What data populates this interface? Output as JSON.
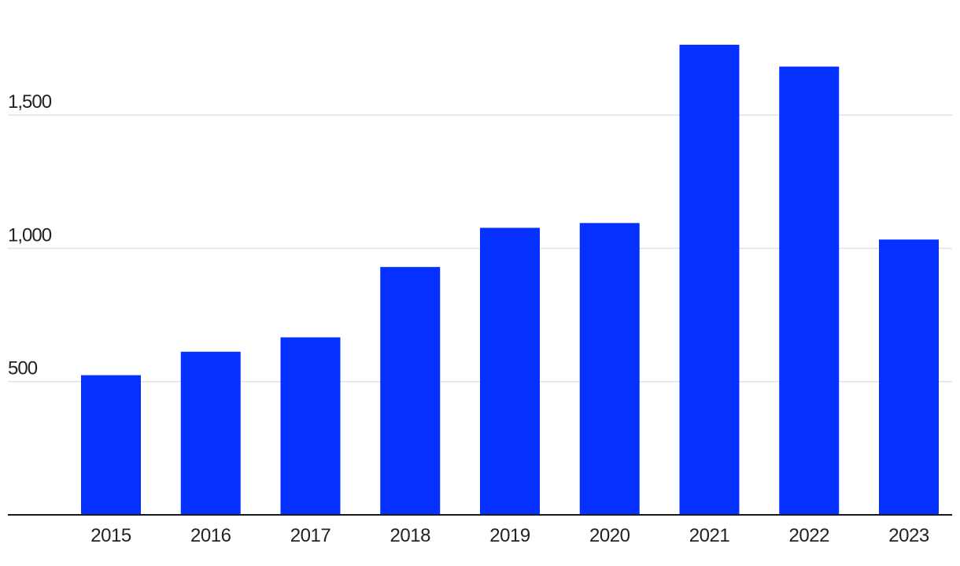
{
  "chart_data": {
    "type": "bar",
    "title": "",
    "xlabel": "",
    "ylabel": "",
    "categories": [
      "2015",
      "2016",
      "2017",
      "2018",
      "2019",
      "2020",
      "2021",
      "2022",
      "2023"
    ],
    "values": [
      524,
      612,
      666,
      930,
      1077,
      1095,
      1764,
      1682,
      1033
    ],
    "ylim": [
      0,
      1850
    ],
    "yticks": [
      500,
      1000,
      1500
    ],
    "ytick_labels": [
      "500",
      "1,000",
      "1,500"
    ],
    "grid": true,
    "legend": "none",
    "colors": {
      "bar": "#0530FF",
      "grid": "#E2E2E2",
      "axis": "#1A1A1A",
      "text": "#222222"
    }
  }
}
